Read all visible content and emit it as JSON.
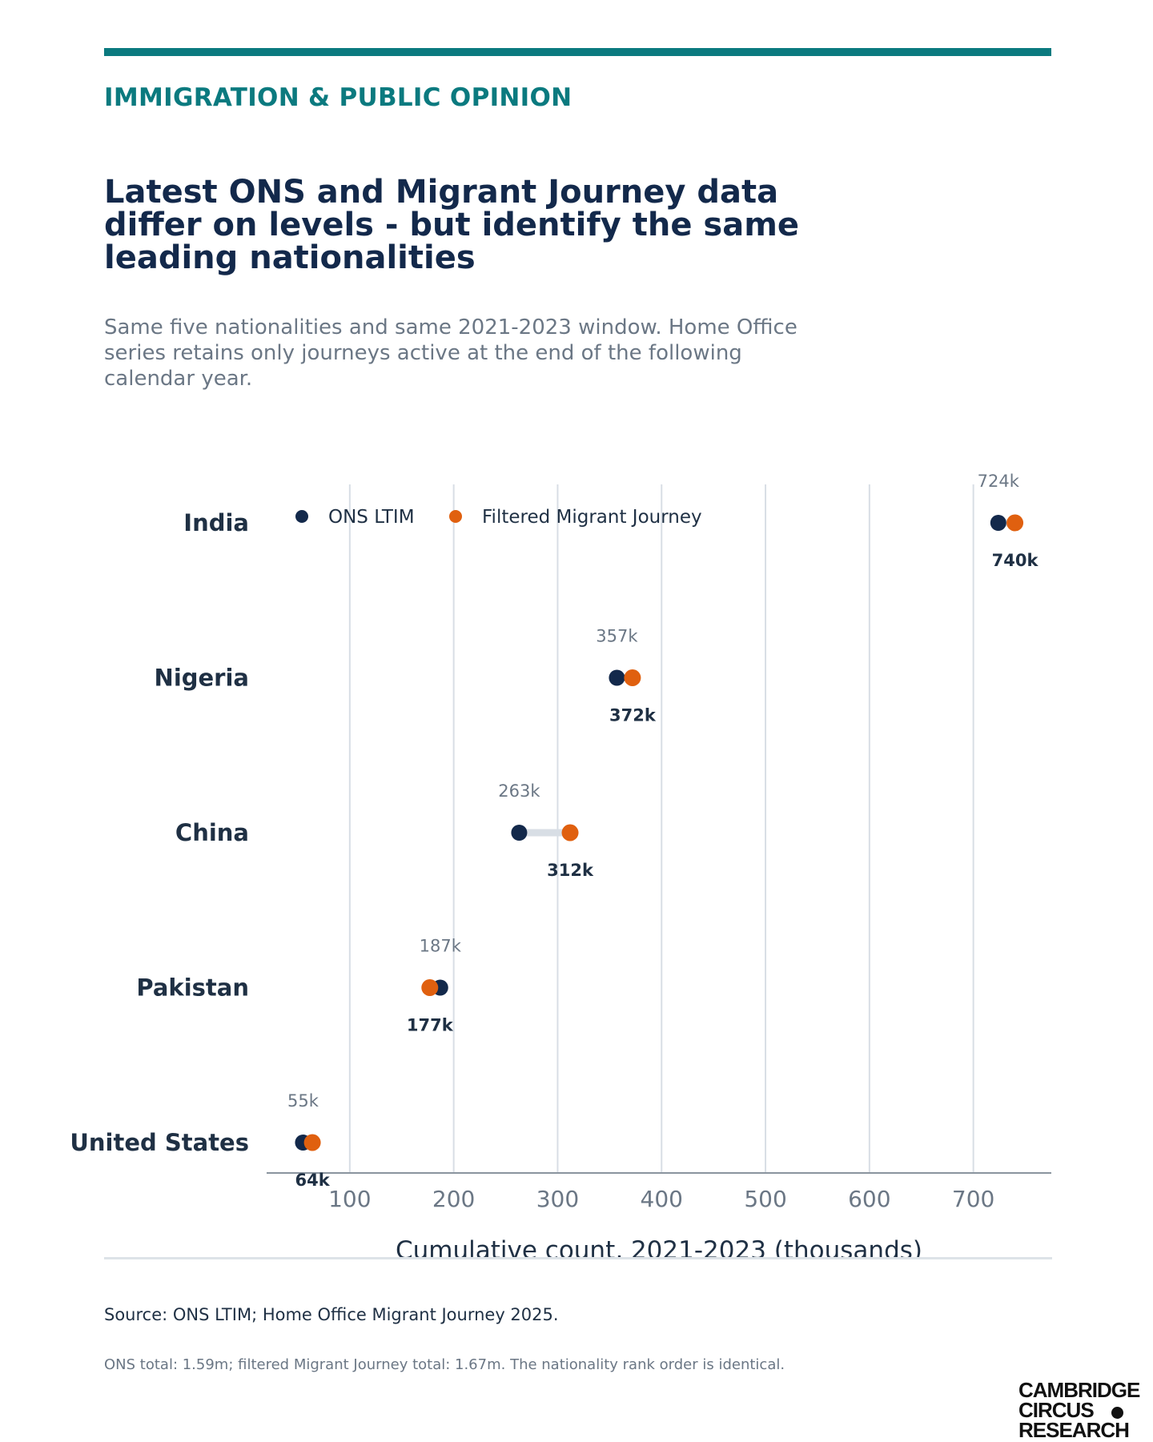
{
  "header": {
    "kicker": "IMMIGRATION & PUBLIC OPINION",
    "title": "Latest ONS and Migrant Journey data differ on levels - but identify the same leading nationalities",
    "subtitle": "Same five nationalities and same 2021-2023 window. Home Office series retains only journeys active at the end of the following calendar year."
  },
  "colors": {
    "accent": "#0b7a7f",
    "ons": "#13294b",
    "migrant_journey": "#e0600f",
    "connector": "#d8dee5",
    "grid": "#d8dee5"
  },
  "chart_data": {
    "type": "scatter",
    "subtype": "dumbbell",
    "categories": [
      "India",
      "Nigeria",
      "China",
      "Pakistan",
      "United States"
    ],
    "series": [
      {
        "name": "ONS LTIM",
        "values": [
          724,
          357,
          263,
          187,
          55
        ],
        "labels": [
          "724k",
          "357k",
          "263k",
          "187k",
          "55k"
        ]
      },
      {
        "name": "Filtered Migrant Journey",
        "values": [
          740,
          372,
          312,
          177,
          64
        ],
        "labels": [
          "740k",
          "372k",
          "312k",
          "177k",
          "64k"
        ]
      }
    ],
    "xlabel": "Cumulative count, 2021-2023 (thousands)",
    "ylabel": "",
    "xlim": [
      20,
      775
    ],
    "xticks": [
      100,
      200,
      300,
      400,
      500,
      600,
      700
    ],
    "xtick_labels": [
      "100",
      "200",
      "300",
      "400",
      "500",
      "600",
      "700"
    ],
    "grid": "vertical",
    "legend_position": "top-left"
  },
  "footer": {
    "source": "Source: ONS LTIM; Home Office Migrant Journey 2025.",
    "note": "ONS total: 1.59m; filtered Migrant Journey total: 1.67m. The nationality rank order is identical.",
    "logo_lines": [
      "CAMBRIDGE",
      "CIRCUS",
      "RESEARCH"
    ]
  }
}
